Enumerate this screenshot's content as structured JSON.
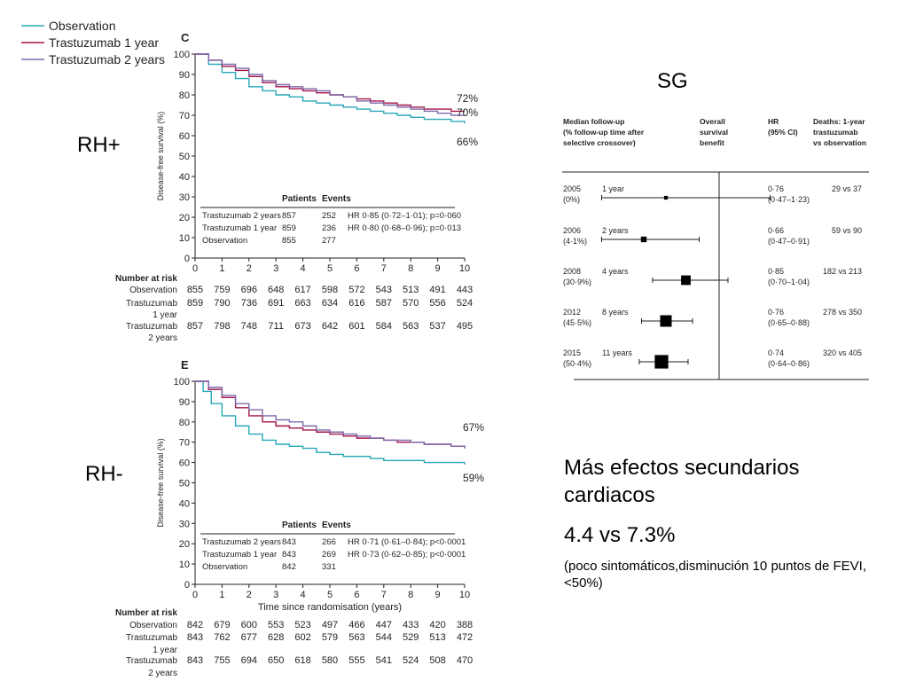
{
  "legend": [
    {
      "label": "Observation",
      "color": "#2aa6b9"
    },
    {
      "label": "Trastuzumab 1 year",
      "color": "#a3154b"
    },
    {
      "label": "Trastuzumab 2 years",
      "color": "#7f6aab"
    }
  ],
  "labels": {
    "rh_pos": "RH+",
    "rh_neg": "RH-",
    "sg": "SG",
    "side_line1": "Más efectos secundarios cardiacos",
    "side_line2": "4.4 vs 7.3%",
    "side_line3": "(poco sintomáticos,disminución 10 puntos de FEVI,<50%)"
  },
  "chart_data": [
    {
      "type": "line",
      "panel_letter": "C",
      "ylabel": "Disease-free survival (%)",
      "xlabel": "",
      "xlim": [
        0,
        10
      ],
      "ylim": [
        0,
        100
      ],
      "xticks": [
        0,
        1,
        2,
        3,
        4,
        5,
        6,
        7,
        8,
        9,
        10
      ],
      "yticks": [
        0,
        10,
        20,
        30,
        40,
        50,
        60,
        70,
        80,
        90,
        100
      ],
      "series": [
        {
          "name": "Observation",
          "color": "#2aa6b9",
          "x": [
            0,
            0.5,
            1,
            1.5,
            2,
            2.5,
            3,
            3.5,
            4,
            4.5,
            5,
            5.5,
            6,
            6.5,
            7,
            7.5,
            8,
            8.5,
            9,
            9.5,
            10
          ],
          "y": [
            100,
            95,
            91,
            88,
            84,
            82,
            80,
            79,
            77,
            76,
            75,
            74,
            73,
            72,
            71,
            70,
            69,
            68,
            68,
            67,
            66
          ]
        },
        {
          "name": "Trastuzumab 1 year",
          "color": "#a3154b",
          "x": [
            0,
            0.5,
            1,
            1.5,
            2,
            2.5,
            3,
            3.5,
            4,
            4.5,
            5,
            5.5,
            6,
            6.5,
            7,
            7.5,
            8,
            8.5,
            9,
            9.5,
            10
          ],
          "y": [
            100,
            97,
            94,
            92,
            89,
            86,
            84,
            83,
            82,
            81,
            80,
            79,
            78,
            77,
            76,
            75,
            74,
            73,
            73,
            72,
            72
          ]
        },
        {
          "name": "Trastuzumab 2 years",
          "color": "#7f6aab",
          "x": [
            0,
            0.5,
            1,
            1.5,
            2,
            2.5,
            3,
            3.5,
            4,
            4.5,
            5,
            5.5,
            6,
            6.5,
            7,
            7.5,
            8,
            8.5,
            9,
            9.5,
            10
          ],
          "y": [
            100,
            97,
            95,
            93,
            90,
            87,
            85,
            84,
            83,
            82,
            80,
            79,
            77,
            76,
            75,
            74,
            73,
            72,
            71,
            70,
            70
          ]
        }
      ],
      "end_labels": [
        "72%",
        "70%",
        "66%"
      ],
      "table": {
        "headers": [
          "Patients",
          "Events"
        ],
        "rows": [
          [
            "Trastuzumab 2 years",
            "857",
            "252",
            "HR 0·85 (0·72–1·01); p=0·060"
          ],
          [
            "Trastuzumab 1 year",
            "859",
            "236",
            "HR 0·80 (0·68–0·96); p=0·013"
          ],
          [
            "Observation",
            "855",
            "277",
            ""
          ]
        ]
      },
      "risk": {
        "title": "Number at risk",
        "rows": [
          {
            "label": "Observation",
            "label2": "",
            "values": [
              "855",
              "759",
              "696",
              "648",
              "617",
              "598",
              "572",
              "543",
              "513",
              "491",
              "443"
            ]
          },
          {
            "label": "Trastuzumab",
            "label2": "1 year",
            "values": [
              "859",
              "790",
              "736",
              "691",
              "663",
              "634",
              "616",
              "587",
              "570",
              "556",
              "524"
            ]
          },
          {
            "label": "Trastuzumab",
            "label2": "2 years",
            "values": [
              "857",
              "798",
              "748",
              "711",
              "673",
              "642",
              "601",
              "584",
              "563",
              "537",
              "495"
            ]
          }
        ]
      }
    },
    {
      "type": "line",
      "panel_letter": "E",
      "ylabel": "Disease-free survival (%)",
      "xlabel": "Time since randomisation (years)",
      "xlim": [
        0,
        10
      ],
      "ylim": [
        0,
        100
      ],
      "xticks": [
        0,
        1,
        2,
        3,
        4,
        5,
        6,
        7,
        8,
        9,
        10
      ],
      "yticks": [
        0,
        10,
        20,
        30,
        40,
        50,
        60,
        70,
        80,
        90,
        100
      ],
      "series": [
        {
          "name": "Observation",
          "color": "#2aa6b9",
          "x": [
            0,
            0.3,
            0.6,
            1,
            1.5,
            2,
            2.5,
            3,
            3.5,
            4,
            4.5,
            5,
            5.5,
            6,
            6.5,
            7,
            7.5,
            8,
            8.5,
            9,
            9.5,
            10
          ],
          "y": [
            100,
            95,
            89,
            83,
            78,
            74,
            71,
            69,
            68,
            67,
            65,
            64,
            63,
            63,
            62,
            61,
            61,
            61,
            60,
            60,
            60,
            59
          ]
        },
        {
          "name": "Trastuzumab 1 year",
          "color": "#a3154b",
          "x": [
            0,
            0.5,
            1,
            1.5,
            2,
            2.5,
            3,
            3.5,
            4,
            4.5,
            5,
            5.5,
            6,
            6.5,
            7,
            7.5,
            8,
            8.5,
            9,
            9.5,
            10
          ],
          "y": [
            100,
            96,
            92,
            87,
            83,
            80,
            78,
            77,
            76,
            75,
            74,
            73,
            72,
            72,
            71,
            70,
            70,
            69,
            69,
            68,
            67
          ]
        },
        {
          "name": "Trastuzumab 2 years",
          "color": "#7f6aab",
          "x": [
            0,
            0.5,
            1,
            1.5,
            2,
            2.5,
            3,
            3.5,
            4,
            4.5,
            5,
            5.5,
            6,
            6.5,
            7,
            7.5,
            8,
            8.5,
            9,
            9.5,
            10
          ],
          "y": [
            100,
            97,
            93,
            89,
            86,
            83,
            81,
            80,
            78,
            76,
            75,
            74,
            73,
            72,
            71,
            71,
            70,
            69,
            69,
            68,
            67
          ]
        }
      ],
      "end_labels": [
        "67%",
        "59%"
      ],
      "table": {
        "headers": [
          "Patients",
          "Events"
        ],
        "rows": [
          [
            "Trastuzumab 2 years",
            "843",
            "266",
            "HR 0·71 (0·61–0·84); p<0·0001"
          ],
          [
            "Trastuzumab 1 year",
            "843",
            "269",
            "HR 0·73 (0·62–0·85); p<0·0001"
          ],
          [
            "Observation",
            "842",
            "331",
            ""
          ]
        ]
      },
      "risk": {
        "title": "Number at risk",
        "rows": [
          {
            "label": "Observation",
            "label2": "",
            "values": [
              "842",
              "679",
              "600",
              "553",
              "523",
              "497",
              "466",
              "447",
              "433",
              "420",
              "388"
            ]
          },
          {
            "label": "Trastuzumab",
            "label2": "1 year",
            "values": [
              "843",
              "762",
              "677",
              "628",
              "602",
              "579",
              "563",
              "544",
              "529",
              "513",
              "472"
            ]
          },
          {
            "label": "Trastuzumab",
            "label2": "2 years",
            "values": [
              "843",
              "755",
              "694",
              "650",
              "618",
              "580",
              "555",
              "541",
              "524",
              "508",
              "470"
            ]
          }
        ]
      }
    },
    {
      "type": "forest",
      "headers": {
        "col1": [
          "Median follow-up",
          "(% follow-up time after",
          "selective crossover)"
        ],
        "col2": [
          "Overall",
          "survival",
          "benefit"
        ],
        "col3": [
          "HR",
          "(95% CI)"
        ],
        "col4": [
          "Deaths: 1-year",
          "trastuzumab",
          "vs observation"
        ]
      },
      "rows": [
        {
          "year": "2005",
          "pct": "(0%)",
          "dur": "1 year",
          "hr": 0.76,
          "lo": 0.47,
          "hi": 1.23,
          "hr_text": "0·76",
          "ci_text": "(0·47–1·23)",
          "deaths": "29 vs 37",
          "weight": 1
        },
        {
          "year": "2006",
          "pct": "(4·1%)",
          "dur": "2 years",
          "hr": 0.66,
          "lo": 0.47,
          "hi": 0.91,
          "hr_text": "0·66",
          "ci_text": "(0·47–0·91)",
          "deaths": "59 vs 90",
          "weight": 2
        },
        {
          "year": "2008",
          "pct": "(30·9%)",
          "dur": "4 years",
          "hr": 0.85,
          "lo": 0.7,
          "hi": 1.04,
          "hr_text": "0·85",
          "ci_text": "(0·70–1·04)",
          "deaths": "182 vs 213",
          "weight": 4
        },
        {
          "year": "2012",
          "pct": "(45·5%)",
          "dur": "8 years",
          "hr": 0.76,
          "lo": 0.65,
          "hi": 0.88,
          "hr_text": "0·76",
          "ci_text": "(0·65–0·88)",
          "deaths": "278 vs 350",
          "weight": 5
        },
        {
          "year": "2015",
          "pct": "(50·4%)",
          "dur": "11 years",
          "hr": 0.74,
          "lo": 0.64,
          "hi": 0.86,
          "hr_text": "0·74",
          "ci_text": "(0·64–0·86)",
          "deaths": "320 vs 405",
          "weight": 6
        }
      ]
    }
  ]
}
